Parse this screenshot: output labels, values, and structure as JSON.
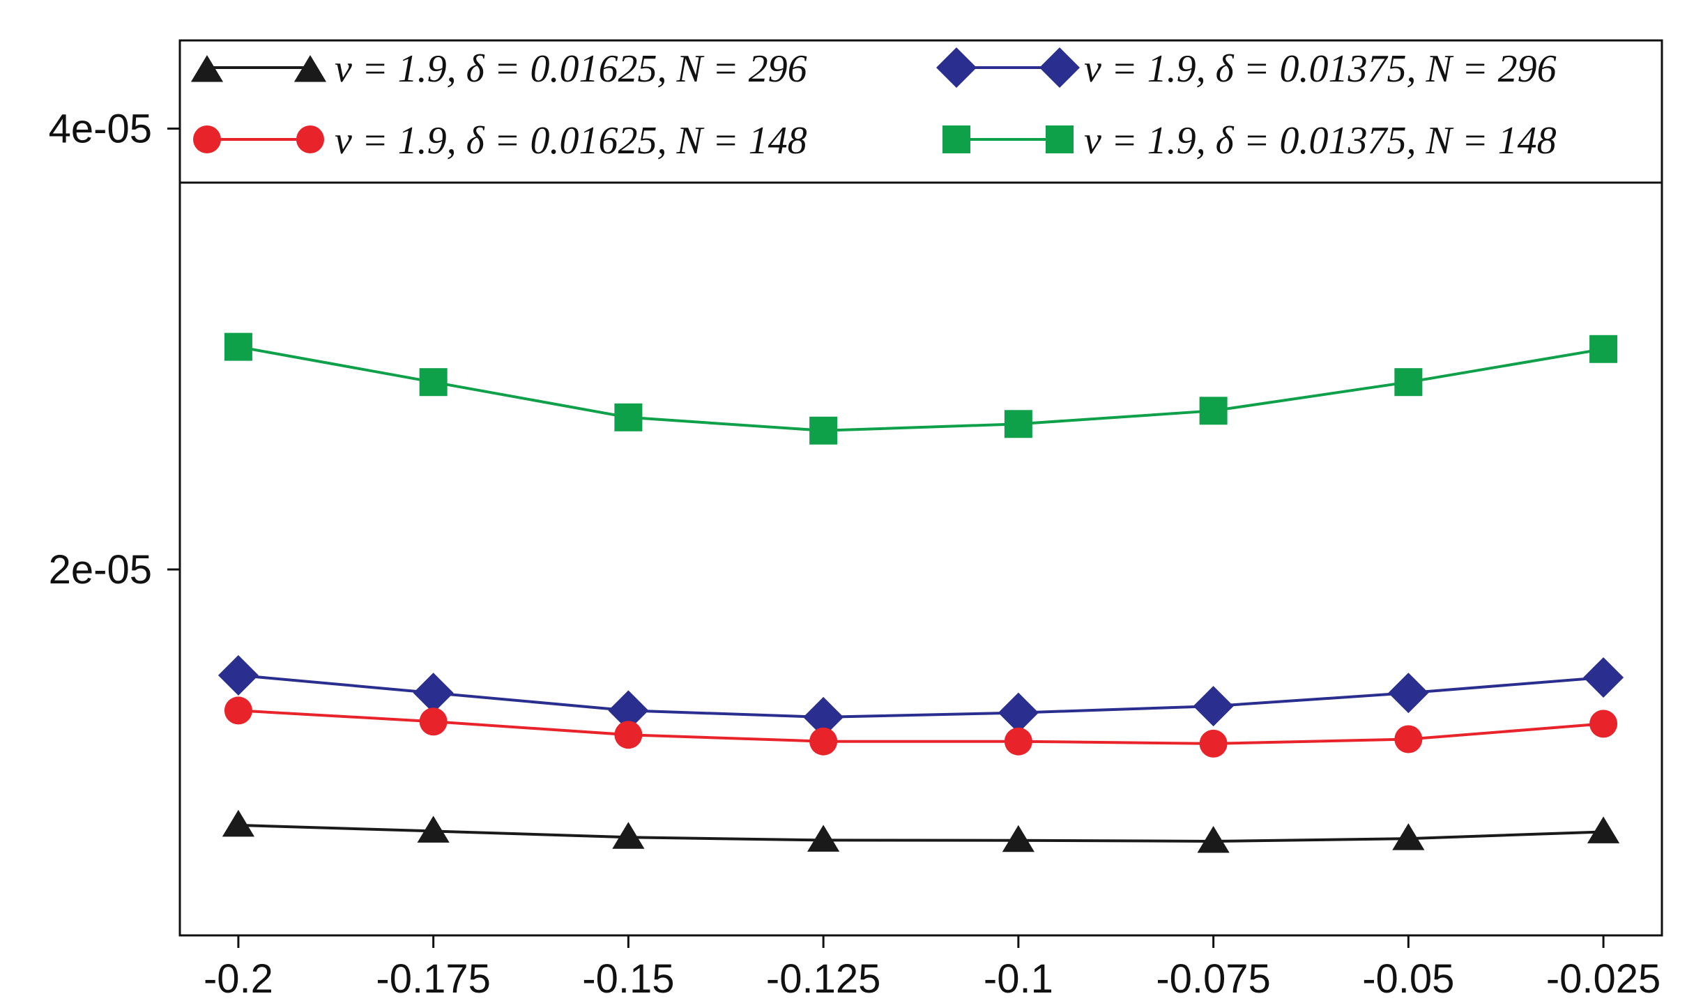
{
  "chart_data": {
    "type": "line",
    "title": "",
    "xlabel": "",
    "ylabel": "",
    "x": [
      -0.2,
      -0.175,
      -0.15,
      -0.125,
      -0.1,
      -0.075,
      -0.05,
      -0.025
    ],
    "x_tick_labels": [
      "-0.2",
      "-0.175",
      "-0.15",
      "-0.125",
      "-0.1",
      "-0.075",
      "-0.05",
      "-0.025"
    ],
    "y_ticks": [
      2e-05,
      4e-05
    ],
    "y_tick_labels": [
      "2e-05",
      "4e-05"
    ],
    "ylim": [
      3.4e-06,
      4.4e-05
    ],
    "xlim": [
      -0.2075,
      -0.0175
    ],
    "grid": false,
    "legend_position": "top",
    "series": [
      {
        "name": "ν = 1.9, δ = 0.01625, N = 296",
        "marker": "triangle",
        "color": "#1a1a1a",
        "values": [
          8.4e-06,
          8.13e-06,
          7.85e-06,
          7.72e-06,
          7.71e-06,
          7.67e-06,
          7.79e-06,
          8.1e-06
        ]
      },
      {
        "name": "ν = 1.9, δ = 0.01375, N = 296",
        "marker": "diamond",
        "color": "#2a2e8f",
        "values": [
          1.52e-05,
          1.44e-05,
          1.36e-05,
          1.33e-05,
          1.35e-05,
          1.38e-05,
          1.44e-05,
          1.51e-05
        ]
      },
      {
        "name": "ν = 1.9, δ = 0.01625, N = 148",
        "marker": "circle",
        "color": "#e8232a",
        "values": [
          1.36e-05,
          1.31e-05,
          1.25e-05,
          1.22e-05,
          1.22e-05,
          1.21e-05,
          1.23e-05,
          1.3e-05
        ]
      },
      {
        "name": "ν = 1.9, δ = 0.01375, N = 148",
        "marker": "square",
        "color": "#0fa04a",
        "values": [
          3.01e-05,
          2.85e-05,
          2.69e-05,
          2.63e-05,
          2.66e-05,
          2.72e-05,
          2.85e-05,
          3e-05
        ]
      }
    ]
  }
}
